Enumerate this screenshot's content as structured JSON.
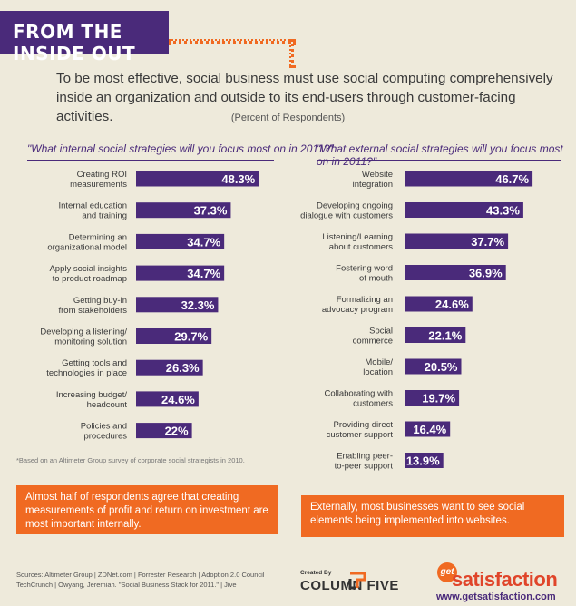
{
  "banner": "FROM THE INSIDE OUT",
  "intro": "To be most effective, social business must use social computing comprehensively inside an organization and outside to its end-users through customer-facing activities.",
  "percent_label": "(Percent of Respondents)",
  "footnote": "*Based on an Altimeter Group survey of corporate social strategists in 2010.",
  "callout_left": "Almost half of respondents agree that creating measurements of profit and return on investment are most important internally.",
  "callout_right": "Externally, most businesses want to see social elements being implemented into websites.",
  "sources_line1": "Sources: Altimeter Group | ZDNet.com | Forrester Research | Adoption 2.0 Council",
  "sources_line2": "TechCrunch | Owyang, Jeremiah. \"Social Business Stack for 2011.\" | Jive",
  "created_by": "Created By",
  "column_five": "COLUMN FIVE",
  "logo_get": "get",
  "logo_satisfaction": "satisfaction",
  "logo_url": "www.getsatisfaction.com",
  "colors": {
    "purple": "#4a2a7a",
    "orange": "#f06a22",
    "background": "#eeeadb"
  },
  "chart_data": [
    {
      "type": "bar",
      "title": "\"What internal social strategies will you focus most on in 2011?\"",
      "categories": [
        [
          "Creating ROI",
          "measurements"
        ],
        [
          "Internal education",
          "and training"
        ],
        [
          "Determining an",
          "organizational model"
        ],
        [
          "Apply social insights",
          "to product roadmap"
        ],
        [
          "Getting buy-in",
          "from stakeholders"
        ],
        [
          "Developing a listening/",
          "monitoring solution"
        ],
        [
          "Getting tools and",
          "technologies in place"
        ],
        [
          "Increasing budget/",
          "headcount"
        ],
        [
          "Policies and",
          "procedures"
        ]
      ],
      "values": [
        48.3,
        37.3,
        34.7,
        34.7,
        32.3,
        29.7,
        26.3,
        24.6,
        22
      ],
      "labels": [
        "48.3%",
        "37.3%",
        "34.7%",
        "34.7%",
        "32.3%",
        "29.7%",
        "26.3%",
        "24.6%",
        "22%"
      ]
    },
    {
      "type": "bar",
      "title": "\"What external social strategies will you focus most on in 2011?\"",
      "categories": [
        [
          "Website",
          "integration"
        ],
        [
          "Developing ongoing",
          "dialogue with customers"
        ],
        [
          "Listening/Learning",
          "about customers"
        ],
        [
          "Fostering word",
          "of mouth"
        ],
        [
          "Formalizing an",
          "advocacy program"
        ],
        [
          "Social",
          "commerce"
        ],
        [
          "Mobile/",
          "location"
        ],
        [
          "Collaborating with",
          "customers"
        ],
        [
          "Providing direct",
          "customer support"
        ],
        [
          "Enabling peer-",
          "to-peer support"
        ]
      ],
      "values": [
        46.7,
        43.3,
        37.7,
        36.9,
        24.6,
        22.1,
        20.5,
        19.7,
        16.4,
        13.9
      ],
      "labels": [
        "46.7%",
        "43.3%",
        "37.7%",
        "36.9%",
        "24.6%",
        "22.1%",
        "20.5%",
        "19.7%",
        "16.4%",
        "13.9%"
      ]
    }
  ]
}
